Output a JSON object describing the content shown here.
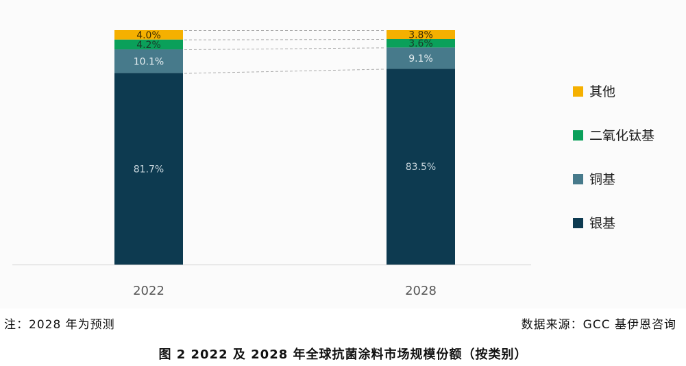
{
  "chart_data": {
    "type": "bar",
    "stacked": true,
    "percent_stacked": true,
    "categories": [
      "2022",
      "2028"
    ],
    "series": [
      {
        "name": "银基",
        "values": [
          81.7,
          83.5
        ],
        "labels": [
          "81.7%",
          "83.5%"
        ],
        "color": "#0d3a50",
        "label_color": "#c9d6dd"
      },
      {
        "name": "铜基",
        "values": [
          10.1,
          9.1
        ],
        "labels": [
          "10.1%",
          "9.1%"
        ],
        "color": "#477a8b",
        "label_color": "#e6eef1"
      },
      {
        "name": "二氧化钛基",
        "values": [
          4.2,
          3.6
        ],
        "labels": [
          "4.2%",
          "3.6%"
        ],
        "color": "#0aa05a",
        "label_color": "#1a3a2a"
      },
      {
        "name": "其他",
        "values": [
          4.0,
          3.8
        ],
        "labels": [
          "4.0%",
          "3.8%"
        ],
        "color": "#f5b000",
        "label_color": "#3a2a00"
      }
    ],
    "legend_order": [
      "其他",
      "二氧化钛基",
      "铜基",
      "银基"
    ],
    "legend_position": "right",
    "ylim": [
      0,
      100
    ],
    "grid": false,
    "connector_lines": "dashed"
  },
  "note": "注：2028 年为预测",
  "source": "数据来源：GCC 基伊恩咨询",
  "caption": "图 2  2022 及 2028 年全球抗菌涂料市场规模份额（按类别）"
}
